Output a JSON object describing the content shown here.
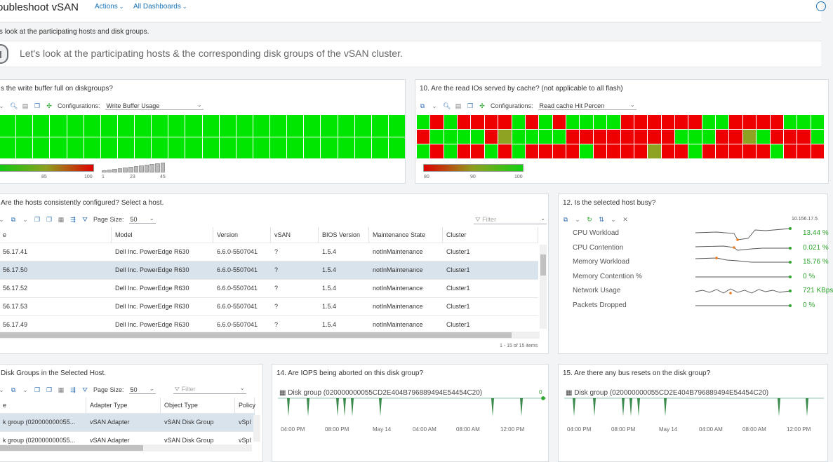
{
  "header": {
    "title": "oubleshoot vSAN",
    "actions": "Actions",
    "dashboards": "All Dashboards"
  },
  "intro": {
    "subtitle": "'s look at the participating hosts and disk groups.",
    "banner": "Let's look at the participating hosts & the corresponding disk groups of the vSAN cluster."
  },
  "p9": {
    "title": "s the write buffer full on diskgroups?",
    "config_label": "Configurations:",
    "config_value": "Write Buffer Usage",
    "legend": [
      "85",
      "100"
    ],
    "legend2": [
      "1",
      "23",
      "45"
    ]
  },
  "p10": {
    "title": "10. Are the read IOs served by cache? (not applicable to all flash)",
    "config_label": "Configurations:",
    "config_value": "Read cache Hit Percen",
    "legend": [
      "80",
      "90",
      "100"
    ],
    "cells": [
      "g",
      "r",
      "g",
      "r",
      "r",
      "r",
      "r",
      "g",
      "r",
      "g",
      "r",
      "g",
      "g",
      "g",
      "g",
      "r",
      "r",
      "r",
      "r",
      "r",
      "r",
      "g",
      "g",
      "r",
      "r",
      "r",
      "r",
      "g",
      "g",
      "g",
      "r",
      "g",
      "g",
      "g",
      "g",
      "r",
      "o",
      "g",
      "g",
      "g",
      "g",
      "r",
      "r",
      "r",
      "r",
      "r",
      "r",
      "r",
      "r",
      "g",
      "g",
      "g",
      "r",
      "r",
      "o",
      "g",
      "r",
      "r",
      "r",
      "g",
      "g",
      "r",
      "g",
      "r",
      "r",
      "g",
      "r",
      "g",
      "r",
      "r",
      "r",
      "r",
      "g",
      "r",
      "r",
      "r",
      "r",
      "o",
      "r",
      "r",
      "g",
      "r",
      "r",
      "r",
      "r",
      "r",
      "g",
      "r",
      "r",
      "r"
    ]
  },
  "p11": {
    "title": "Are the hosts consistently configured? Select a host.",
    "page_size_label": "Page Size:",
    "page_size": "50",
    "filter": "Filter",
    "columns": [
      "e",
      "Model",
      "Version",
      "vSAN",
      "BIOS Version",
      "Maintenance State",
      "Cluster"
    ],
    "rows": [
      [
        "56.17.41",
        "Dell Inc. PowerEdge R630",
        "6.6.0-5507041",
        "?",
        "1.5.4",
        "notInMaintenance",
        "Cluster1"
      ],
      [
        "56.17.50",
        "Dell Inc. PowerEdge R630",
        "6.6.0-5507041",
        "?",
        "1.5.4",
        "notInMaintenance",
        "Cluster1"
      ],
      [
        "56.17.52",
        "Dell Inc. PowerEdge R630",
        "6.6.0-5507041",
        "?",
        "1.5.4",
        "notInMaintenance",
        "Cluster1"
      ],
      [
        "56.17.53",
        "Dell Inc. PowerEdge R630",
        "6.6.0-5507041",
        "?",
        "1.5.4",
        "notInMaintenance",
        "Cluster1"
      ],
      [
        "56.17.49",
        "Dell Inc. PowerEdge R630",
        "6.6.0-5507041",
        "?",
        "1.5.4",
        "notInMaintenance",
        "Cluster1"
      ]
    ],
    "footer": "1 - 15 of 15 items"
  },
  "p12": {
    "title": "12. Is the selected host busy?",
    "time": "10.156.17.5",
    "metrics": [
      {
        "name": "CPU Workload",
        "value": "13.44 %"
      },
      {
        "name": "CPU Contention",
        "value": "0.021 %"
      },
      {
        "name": "Memory Workload",
        "value": "15.76 %"
      },
      {
        "name": "Memory Contention %",
        "value": "0 %"
      },
      {
        "name": "Network Usage",
        "value": "721 KBps"
      },
      {
        "name": "Packets Dropped",
        "value": "0 %"
      }
    ]
  },
  "p13": {
    "title": "Disk Groups in the Selected Host.",
    "page_size_label": "Page Size:",
    "page_size": "50",
    "filter": "Filter",
    "columns": [
      "e",
      "Adapter Type",
      "Object Type",
      "Policy"
    ],
    "rows": [
      [
        "k group (020000000055...",
        "vSAN Adapter",
        "vSAN Disk Group",
        "vSpl"
      ],
      [
        "k group (020000000055...",
        "vSAN Adapter",
        "vSAN Disk Group",
        "vSpl"
      ]
    ]
  },
  "p14": {
    "title": "14. Are IOPS being aborted on this disk group?",
    "series": "Disk group (020000000055CD2E404B796889494E54454C20)",
    "max": "0",
    "ticks": [
      "04:00 PM",
      "08:00 PM",
      "May 14",
      "04:00 AM",
      "08:00 AM",
      "12:00 PM"
    ]
  },
  "p15": {
    "title": "15. Are there any bus resets on the disk group?",
    "series": "Disk group (020000000055CD2E404B796889494E54454C20)",
    "ticks": [
      "04:00 PM",
      "08:00 PM",
      "May 14",
      "04:00 AM",
      "08:00 AM",
      "12:00 PM"
    ]
  },
  "colors": {
    "green": "#00e600",
    "red": "#ee0000",
    "olive": "#8ea321",
    "accent": "#1a73b8",
    "value_green": "#2ea52e"
  }
}
